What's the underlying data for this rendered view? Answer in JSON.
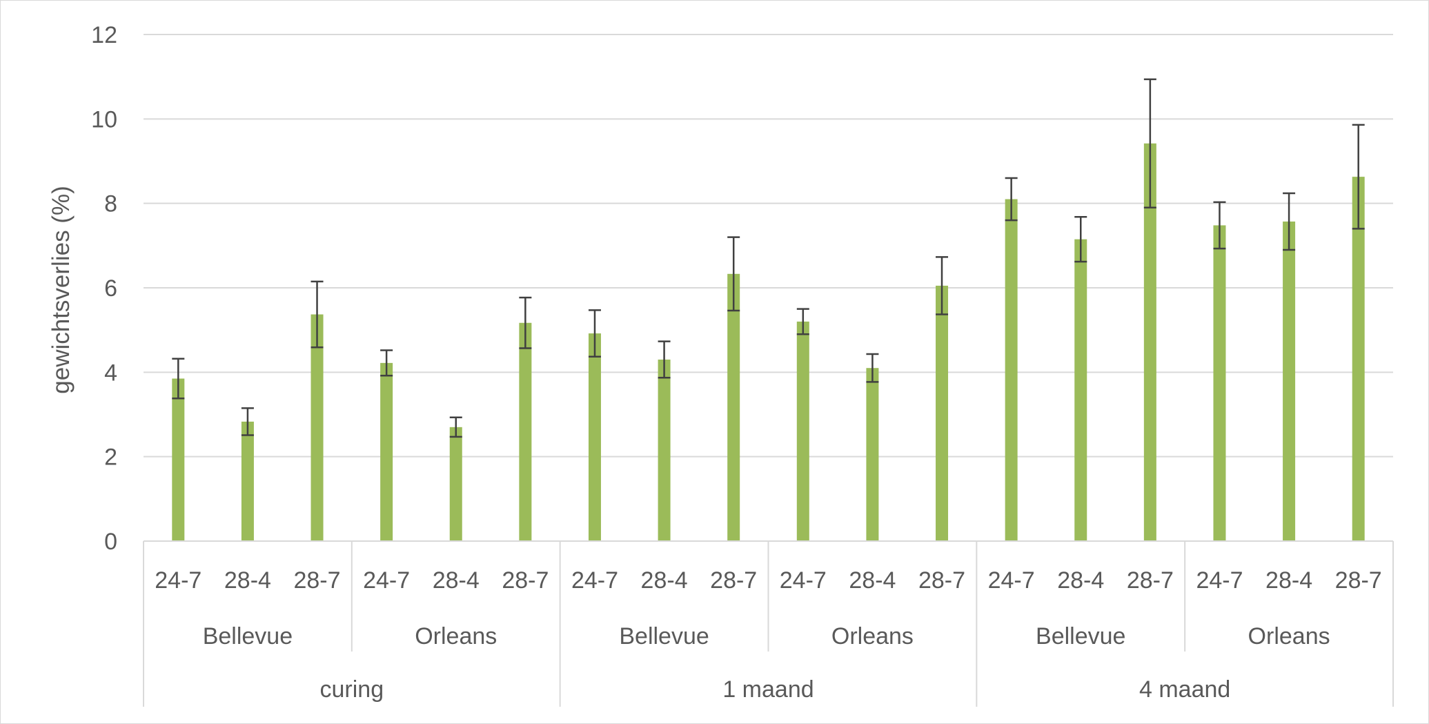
{
  "chart_data": {
    "type": "bar",
    "title": "",
    "ylabel": "gewichtsverlies (%)",
    "xlabel": "",
    "ylim": [
      0,
      12
    ],
    "yticks": [
      "0",
      "2",
      "4",
      "6",
      "8",
      "10",
      "12"
    ],
    "grid": true,
    "legend": "none",
    "categories": [
      "24-7",
      "28-4",
      "28-7",
      "24-7",
      "28-4",
      "28-7",
      "24-7",
      "28-4",
      "28-7",
      "24-7",
      "28-4",
      "28-7",
      "24-7",
      "28-4",
      "28-7",
      "24-7",
      "28-4",
      "28-7"
    ],
    "varieties": [
      "Bellevue",
      "Orleans",
      "Bellevue",
      "Orleans",
      "Bellevue",
      "Orleans"
    ],
    "periods": [
      "curing",
      "1 maand",
      "4 maand"
    ],
    "series": [
      {
        "values": [
          3.85,
          2.83,
          5.37,
          4.22,
          2.7,
          5.17,
          4.92,
          4.3,
          6.33,
          5.2,
          4.1,
          6.05,
          8.1,
          7.15,
          9.42,
          7.48,
          7.57,
          8.63
        ],
        "error": [
          0.47,
          0.32,
          0.78,
          0.3,
          0.23,
          0.6,
          0.55,
          0.43,
          0.87,
          0.3,
          0.33,
          0.68,
          0.5,
          0.53,
          1.52,
          0.55,
          0.67,
          1.23
        ]
      }
    ],
    "colors": {
      "bar": "#9bbb59",
      "error_bar": "#404040",
      "grid": "#d9d9d9",
      "text": "#595959"
    }
  }
}
